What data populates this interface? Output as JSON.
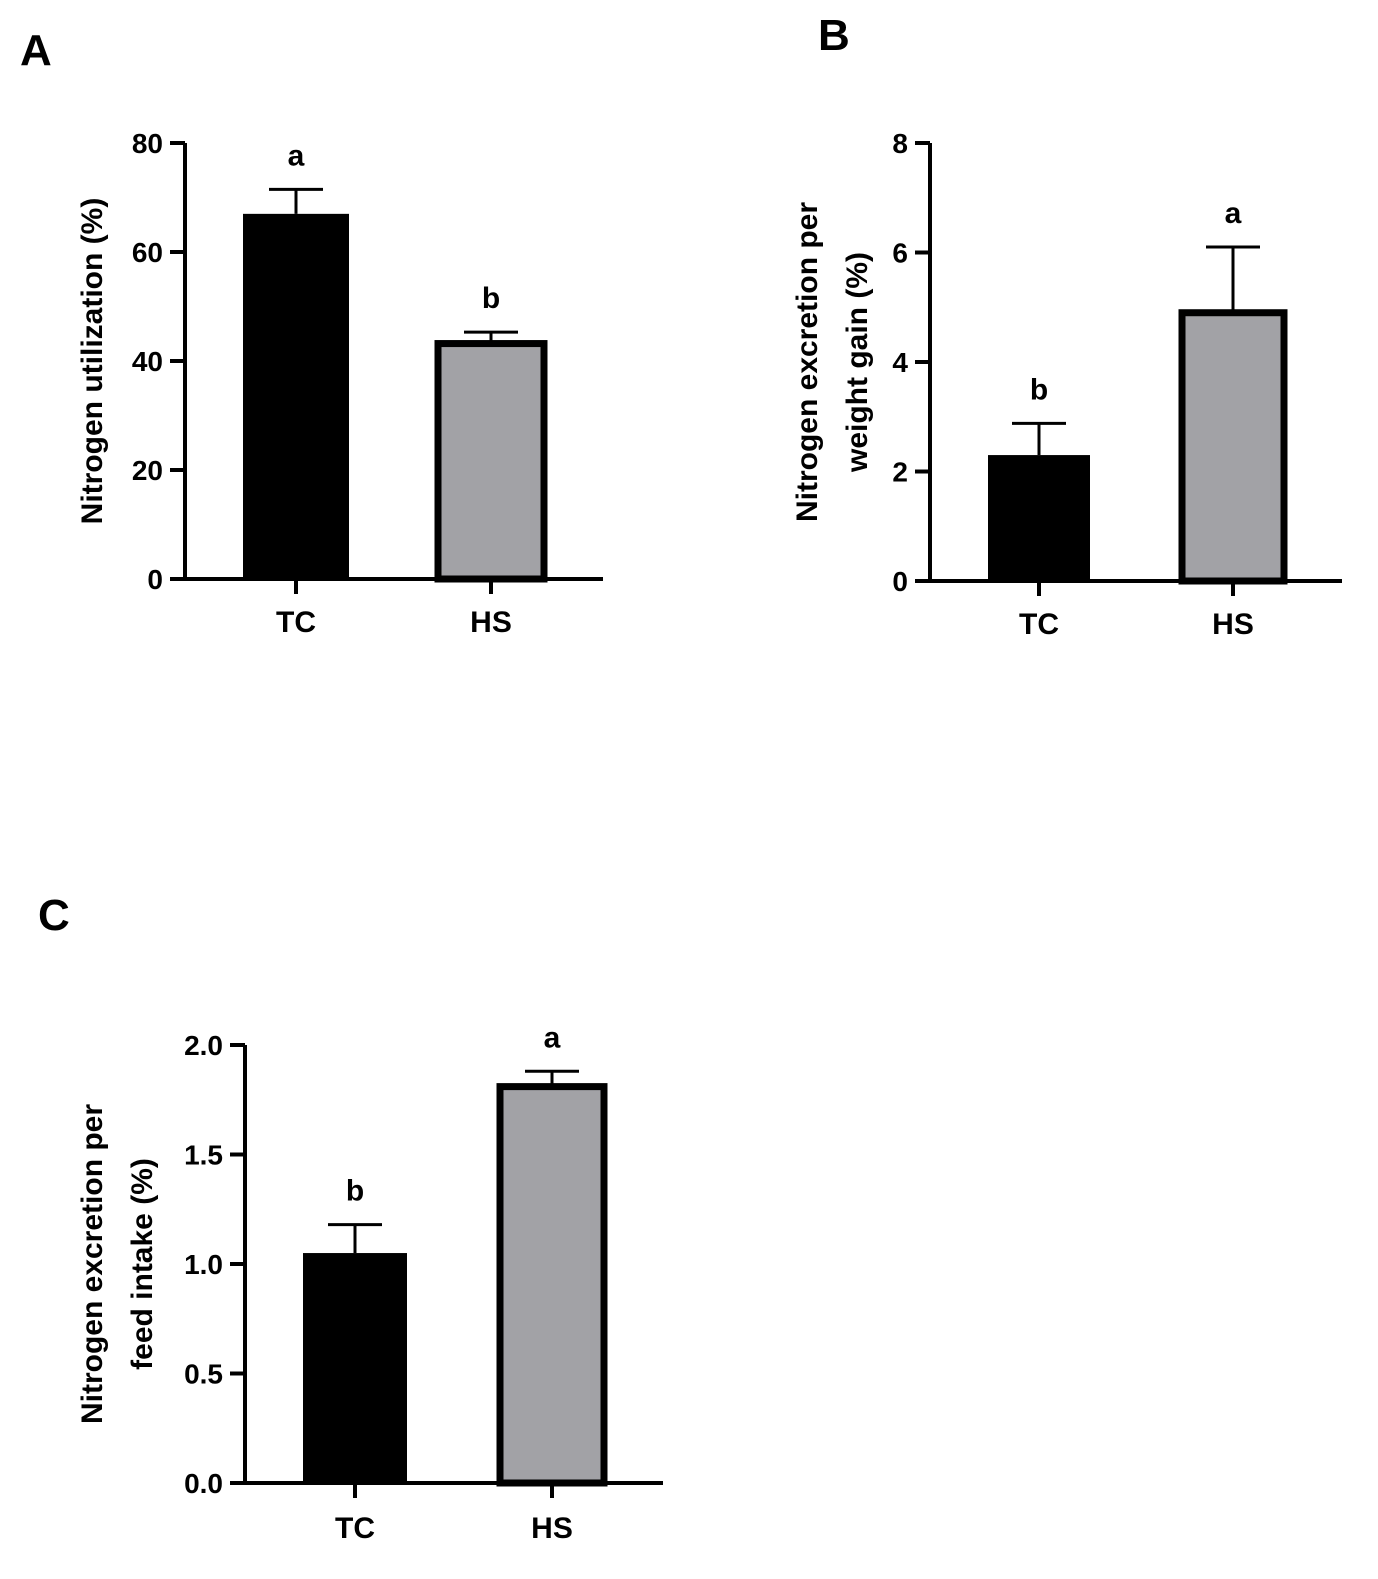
{
  "chart_data": [
    {
      "type": "bar",
      "panel": "A",
      "title": "",
      "xlabel": "",
      "ylabel_lines": [
        "Nitrogen utilization (%)"
      ],
      "categories": [
        "TC",
        "HS"
      ],
      "values": [
        67,
        43.2
      ],
      "errors": [
        4.5,
        2.1
      ],
      "significance": [
        "a",
        "b"
      ],
      "colors": [
        "#000000",
        "#a2a2a6"
      ],
      "ylim": [
        0,
        80
      ],
      "yticks": [
        0,
        20,
        40,
        60,
        80
      ],
      "ytick_labels": [
        "0",
        "20",
        "40",
        "60",
        "80"
      ]
    },
    {
      "type": "bar",
      "panel": "B",
      "title": "",
      "xlabel": "",
      "ylabel_lines": [
        "Nitrogen excretion per",
        "weight gain (%)"
      ],
      "categories": [
        "TC",
        "HS"
      ],
      "values": [
        2.3,
        4.9
      ],
      "errors": [
        0.58,
        1.2
      ],
      "significance": [
        "b",
        "a"
      ],
      "colors": [
        "#000000",
        "#a2a2a6"
      ],
      "ylim": [
        0,
        8
      ],
      "yticks": [
        0,
        2,
        4,
        6,
        8
      ],
      "ytick_labels": [
        "0",
        "2",
        "4",
        "6",
        "8"
      ]
    },
    {
      "type": "bar",
      "panel": "C",
      "title": "",
      "xlabel": "",
      "ylabel_lines": [
        "Nitrogen excretion per",
        "feed intake (%)"
      ],
      "categories": [
        "TC",
        "HS"
      ],
      "values": [
        1.05,
        1.81
      ],
      "errors": [
        0.13,
        0.07
      ],
      "significance": [
        "b",
        "a"
      ],
      "colors": [
        "#000000",
        "#a2a2a6"
      ],
      "ylim": [
        0,
        2
      ],
      "yticks": [
        0,
        0.5,
        1,
        1.5,
        2
      ],
      "ytick_labels": [
        "0.0",
        "0.5",
        "1.0",
        "1.5",
        "2.0"
      ]
    }
  ]
}
